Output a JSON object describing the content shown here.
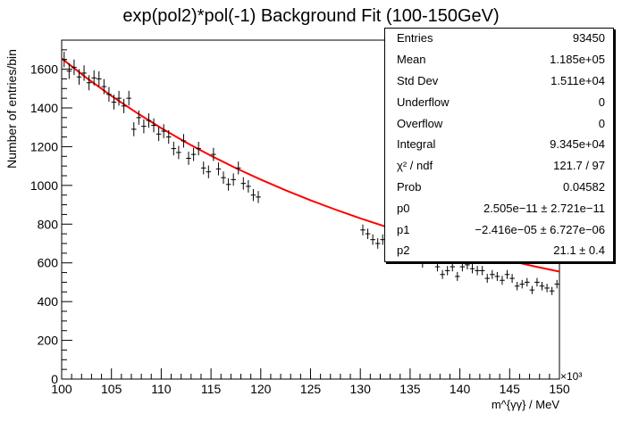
{
  "chart_data": {
    "type": "scatter",
    "title": "exp(pol2)*pol(-1) Background Fit (100-150GeV)",
    "xlabel": "m^{γγ} / MeV",
    "ylabel": "Number of entries/bin",
    "x_exponent_label": "×10³",
    "xlim": [
      100000,
      150000
    ],
    "ylim": [
      0,
      1750
    ],
    "x_ticks": [
      100,
      105,
      110,
      115,
      120,
      125,
      130,
      135,
      140,
      145,
      150
    ],
    "y_ticks": [
      0,
      200,
      400,
      600,
      800,
      1000,
      1200,
      1400,
      1600
    ],
    "bin_width": 500,
    "grid": false,
    "series": [
      {
        "name": "",
        "kind": "data-points-with-errors",
        "color": "#000000",
        "x": [
          100250,
          100750,
          101250,
          101750,
          102250,
          102750,
          103250,
          103750,
          104250,
          104750,
          105250,
          105750,
          106250,
          106750,
          107250,
          107750,
          108250,
          108750,
          109250,
          109750,
          110250,
          110750,
          111250,
          111750,
          112250,
          112750,
          113250,
          113750,
          114250,
          114750,
          115250,
          115750,
          116250,
          116750,
          117250,
          117750,
          118250,
          118750,
          119250,
          119750,
          130250,
          130750,
          131250,
          131750,
          132250,
          132750,
          133250,
          133750,
          134250,
          134750,
          135250,
          135750,
          136250,
          136750,
          137250,
          137750,
          138250,
          138750,
          139250,
          139750,
          140250,
          140750,
          141250,
          141750,
          142250,
          142750,
          143250,
          143750,
          144250,
          144750,
          145250,
          145750,
          146250,
          146750,
          147250,
          147750,
          148250,
          148750,
          149250,
          149750
        ],
        "y": [
          1650,
          1590,
          1610,
          1560,
          1580,
          1530,
          1555,
          1550,
          1510,
          1470,
          1430,
          1450,
          1410,
          1450,
          1290,
          1350,
          1305,
          1335,
          1310,
          1265,
          1280,
          1250,
          1190,
          1170,
          1230,
          1140,
          1160,
          1190,
          1090,
          1070,
          1160,
          1085,
          1040,
          1005,
          1030,
          1090,
          1010,
          995,
          950,
          940,
          770,
          750,
          720,
          700,
          720,
          690,
          710,
          680,
          670,
          690,
          690,
          650,
          600,
          700,
          620,
          580,
          540,
          560,
          580,
          530,
          580,
          590,
          570,
          560,
          560,
          520,
          540,
          530,
          510,
          540,
          520,
          480,
          490,
          500,
          460,
          500,
          480,
          470,
          455,
          490
        ],
        "yerr": [
          40,
          40,
          40,
          40,
          40,
          39,
          39,
          39,
          39,
          38,
          38,
          38,
          37,
          38,
          36,
          37,
          36,
          37,
          36,
          36,
          36,
          35,
          35,
          34,
          35,
          34,
          34,
          35,
          33,
          33,
          34,
          33,
          32,
          32,
          32,
          33,
          32,
          32,
          31,
          31,
          28,
          27,
          27,
          27,
          27,
          26,
          27,
          26,
          26,
          26,
          26,
          26,
          25,
          26,
          25,
          24,
          23,
          24,
          24,
          23,
          24,
          24,
          24,
          24,
          24,
          23,
          23,
          23,
          23,
          23,
          23,
          22,
          22,
          22,
          21,
          22,
          22,
          22,
          21,
          22
        ]
      },
      {
        "name": "",
        "kind": "fit-curve",
        "color": "#ff0000",
        "x": [
          100000,
          102500,
          105000,
          107500,
          110000,
          112500,
          115000,
          117500,
          120000,
          122500,
          125000,
          127500,
          130000,
          132500,
          135000,
          137500,
          140000,
          142500,
          145000,
          147500,
          150000
        ],
        "y": [
          1655,
          1555,
          1462,
          1376,
          1296,
          1222,
          1153,
          1089,
          1030,
          975,
          923,
          875,
          830,
          788,
          748,
          710,
          675,
          642,
          611,
          582,
          555
        ]
      }
    ]
  },
  "stats_box": {
    "rows": [
      {
        "label": "Entries",
        "value": "93450"
      },
      {
        "label": "Mean",
        "value": "1.185e+05"
      },
      {
        "label": "Std Dev",
        "value": "1.511e+04"
      },
      {
        "label": "Underflow",
        "value": "0"
      },
      {
        "label": "Overflow",
        "value": "0"
      },
      {
        "label": "Integral",
        "value": "9.345e+04"
      },
      {
        "label": "χ² / ndf",
        "value": "121.7 / 97"
      },
      {
        "label": "Prob",
        "value": "0.04582"
      },
      {
        "label": "p0",
        "value": "2.505e−11 ± 2.721e−11"
      },
      {
        "label": "p1",
        "value": "−2.416e−05 ± 6.727e−06"
      },
      {
        "label": "p2",
        "value": "21.1 ± 0.4"
      }
    ]
  }
}
